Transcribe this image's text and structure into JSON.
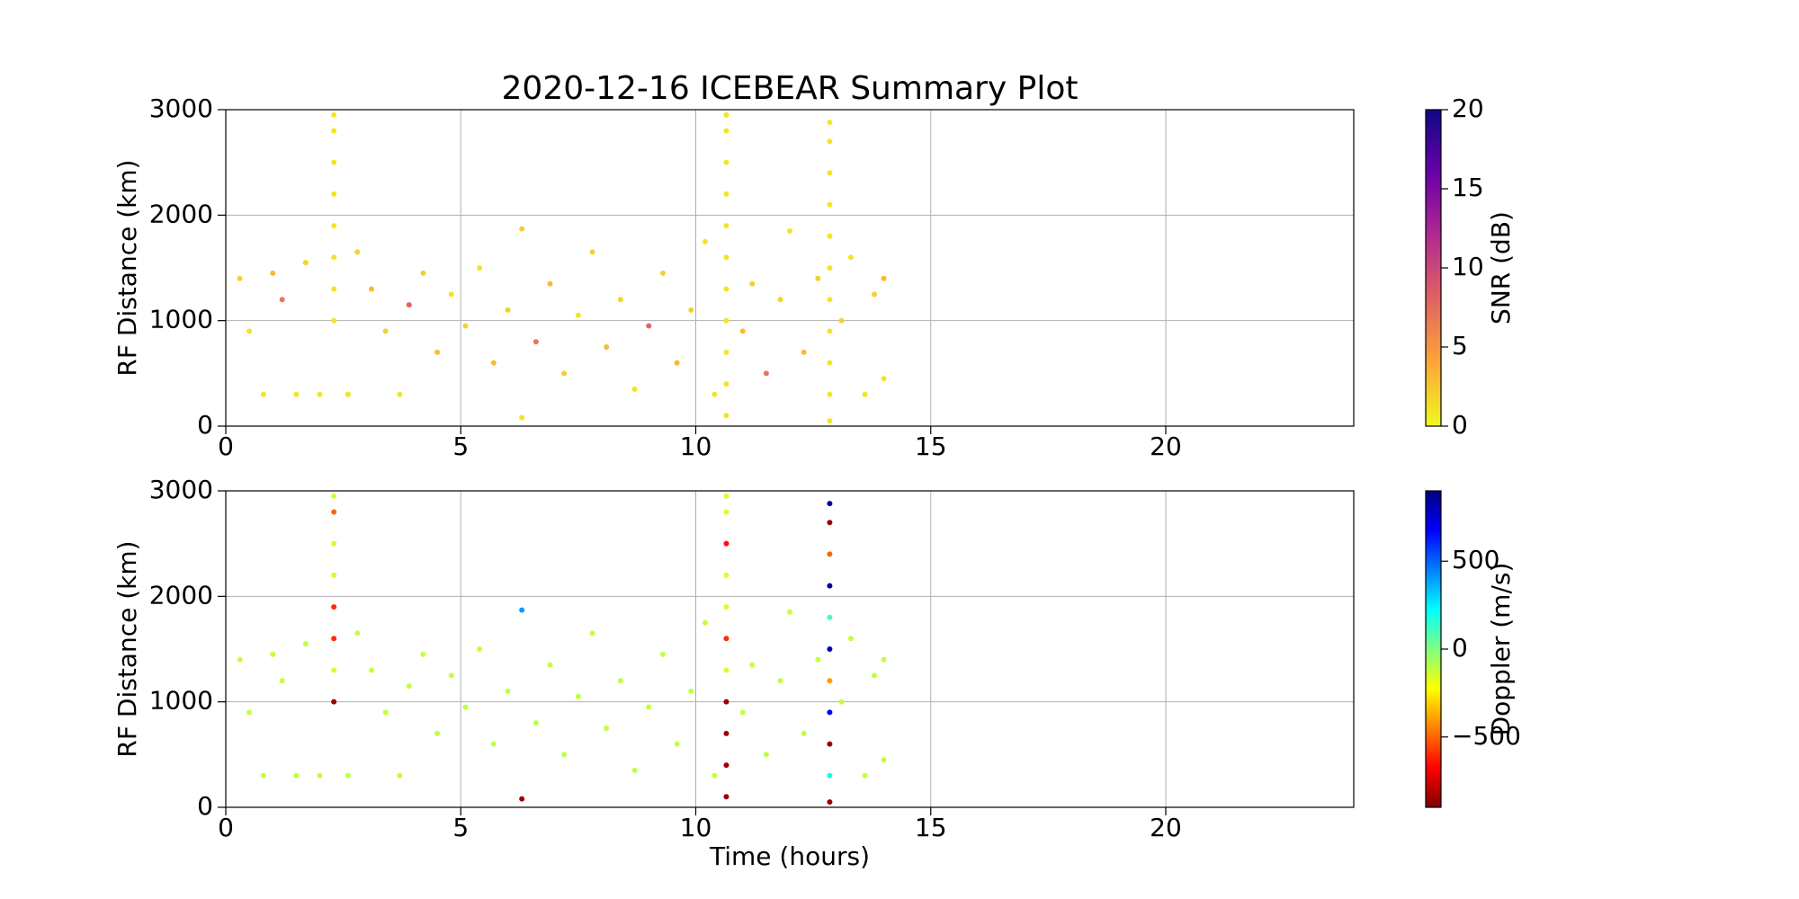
{
  "chart_data": [
    {
      "type": "scatter",
      "title": "2020-12-16 ICEBEAR Summary Plot",
      "y_label": "RF Distance (km)",
      "xlim": [
        0,
        24
      ],
      "xticks": [
        0,
        5,
        10,
        15,
        20
      ],
      "ylim": [
        0,
        3000
      ],
      "yticks": [
        0,
        1000,
        2000,
        3000
      ],
      "grid": true,
      "x": [
        0.3,
        0.5,
        0.8,
        1.0,
        1.2,
        1.5,
        1.7,
        2.0,
        2.6,
        2.8,
        3.1,
        3.4,
        3.7,
        3.9,
        4.2,
        4.5,
        4.8,
        5.1,
        5.4,
        5.7,
        6.0,
        6.3,
        6.3,
        6.6,
        6.9,
        7.2,
        7.5,
        7.8,
        8.1,
        8.4,
        8.7,
        9.0,
        9.3,
        9.6,
        9.9,
        10.2,
        10.4,
        11.0,
        11.2,
        11.5,
        11.8,
        12.0,
        12.3,
        12.6,
        13.1,
        13.3,
        13.6,
        13.8,
        14.0,
        14.0,
        2.3,
        2.3,
        2.3,
        2.3,
        2.3,
        2.3,
        2.3,
        2.3,
        10.65,
        10.65,
        10.65,
        10.65,
        10.65,
        10.65,
        10.65,
        10.65,
        10.65,
        10.65,
        10.65,
        12.85,
        12.85,
        12.85,
        12.85,
        12.85,
        12.85,
        12.85,
        12.85,
        12.85,
        12.85,
        12.85
      ],
      "values": [
        1400,
        900,
        300,
        1450,
        1200,
        300,
        1550,
        300,
        300,
        1650,
        1300,
        900,
        300,
        1150,
        1450,
        700,
        1250,
        950,
        1500,
        600,
        1100,
        80,
        1870,
        800,
        1350,
        500,
        1050,
        1650,
        750,
        1200,
        350,
        950,
        1450,
        600,
        1100,
        1750,
        300,
        900,
        1350,
        500,
        1200,
        1850,
        700,
        1400,
        1000,
        1600,
        300,
        1250,
        450,
        1400,
        1000,
        1300,
        1600,
        1900,
        2200,
        2500,
        2800,
        2950,
        100,
        400,
        700,
        1000,
        1300,
        1600,
        1900,
        2200,
        2500,
        2800,
        2950,
        50,
        300,
        600,
        900,
        1200,
        1500,
        1800,
        2100,
        2400,
        2700,
        2880
      ],
      "color_values": [
        2,
        1,
        1,
        3,
        7,
        1,
        2,
        1,
        1,
        2,
        3,
        2,
        1,
        8,
        2,
        3,
        1,
        2,
        1,
        3,
        2,
        1,
        2,
        7,
        3,
        2,
        1,
        2,
        3,
        2,
        1,
        8,
        2,
        3,
        2,
        1,
        1,
        3,
        2,
        7,
        2,
        1,
        3,
        2,
        2,
        1,
        1,
        2,
        1,
        3,
        1,
        1,
        1,
        1,
        1,
        1,
        1,
        1,
        1,
        1,
        1,
        1,
        1,
        1,
        1,
        1,
        1,
        1,
        1,
        1,
        1,
        1,
        1,
        1,
        1,
        1,
        1,
        1,
        1,
        1
      ],
      "colorbar": {
        "label": "SNR (dB)",
        "lim": [
          0,
          20
        ],
        "ticks": [
          0,
          5,
          10,
          15,
          20
        ],
        "colormap": [
          "#f0f921",
          "#fca636",
          "#e16462",
          "#b12a90",
          "#6a00a8",
          "#0d0887"
        ]
      }
    },
    {
      "type": "scatter",
      "x_label": "Time (hours)",
      "y_label": "RF Distance (km)",
      "xlim": [
        0,
        24
      ],
      "xticks": [
        0,
        5,
        10,
        15,
        20
      ],
      "ylim": [
        0,
        3000
      ],
      "yticks": [
        0,
        1000,
        2000,
        3000
      ],
      "grid": true,
      "x": [
        0.3,
        0.5,
        0.8,
        1.0,
        1.2,
        1.5,
        1.7,
        2.0,
        2.6,
        2.8,
        3.1,
        3.4,
        3.7,
        3.9,
        4.2,
        4.5,
        4.8,
        5.1,
        5.4,
        5.7,
        6.0,
        6.3,
        6.3,
        6.6,
        6.9,
        7.2,
        7.5,
        7.8,
        8.1,
        8.4,
        8.7,
        9.0,
        9.3,
        9.6,
        9.9,
        10.2,
        10.4,
        11.0,
        11.2,
        11.5,
        11.8,
        12.0,
        12.3,
        12.6,
        13.1,
        13.3,
        13.6,
        13.8,
        14.0,
        14.0,
        2.3,
        2.3,
        2.3,
        2.3,
        2.3,
        2.3,
        2.3,
        2.3,
        10.65,
        10.65,
        10.65,
        10.65,
        10.65,
        10.65,
        10.65,
        10.65,
        10.65,
        10.65,
        10.65,
        12.85,
        12.85,
        12.85,
        12.85,
        12.85,
        12.85,
        12.85,
        12.85,
        12.85,
        12.85,
        12.85
      ],
      "values": [
        1400,
        900,
        300,
        1450,
        1200,
        300,
        1550,
        300,
        300,
        1650,
        1300,
        900,
        300,
        1150,
        1450,
        700,
        1250,
        950,
        1500,
        600,
        1100,
        80,
        1870,
        800,
        1350,
        500,
        1050,
        1650,
        750,
        1200,
        350,
        950,
        1450,
        600,
        1100,
        1750,
        300,
        900,
        1350,
        500,
        1200,
        1850,
        700,
        1400,
        1000,
        1600,
        300,
        1250,
        450,
        1400,
        1000,
        1300,
        1600,
        1900,
        2200,
        2500,
        2800,
        2950,
        100,
        400,
        700,
        1000,
        1300,
        1600,
        1900,
        2200,
        2500,
        2800,
        2950,
        50,
        300,
        600,
        900,
        1200,
        1500,
        1800,
        2100,
        2400,
        2700,
        2880
      ],
      "color_values": [
        -120,
        -120,
        -120,
        -120,
        -120,
        -120,
        -120,
        -120,
        -120,
        -120,
        -120,
        -120,
        -120,
        -120,
        -120,
        -120,
        -120,
        -120,
        -120,
        -120,
        -120,
        -850,
        400,
        -120,
        -120,
        -120,
        -120,
        -120,
        -120,
        -120,
        -120,
        -120,
        -120,
        -120,
        -120,
        -120,
        -120,
        -120,
        -120,
        -120,
        -120,
        -120,
        -120,
        -120,
        -120,
        -120,
        -120,
        -120,
        -120,
        -120,
        -850,
        -150,
        -600,
        -600,
        -150,
        -150,
        -500,
        -150,
        -850,
        -850,
        -850,
        -850,
        -150,
        -600,
        -150,
        -150,
        -650,
        -150,
        -150,
        -850,
        200,
        -850,
        700,
        -400,
        800,
        100,
        850,
        -500,
        -850,
        850
      ],
      "colorbar": {
        "label": "Doppler (m/s)",
        "lim": [
          -900,
          900
        ],
        "ticks": [
          {
            "value": -500,
            "label": "−500"
          },
          0,
          500
        ],
        "colormap": [
          "#800000",
          "#ff0000",
          "#ff8000",
          "#ffff00",
          "#80ff80",
          "#00ffff",
          "#0080ff",
          "#0000ff",
          "#000080"
        ]
      }
    }
  ]
}
